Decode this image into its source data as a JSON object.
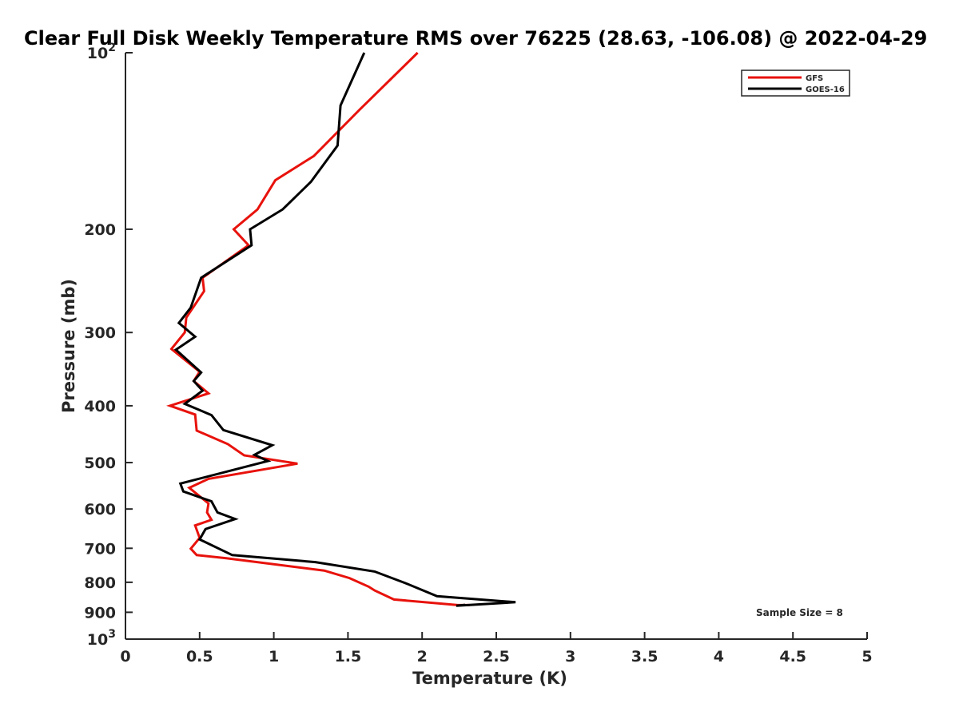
{
  "chart_data": {
    "type": "line",
    "title": "Clear Full Disk Weekly Temperature RMS over 76225 (28.63, -106.08) @ 2022-04-29",
    "xlabel": "Temperature (K)",
    "ylabel": "Pressure (mb)",
    "xlim": [
      0,
      5
    ],
    "ylim": [
      100,
      1000
    ],
    "y_scale": "log",
    "y_reversed": true,
    "grid": false,
    "legend_position": "top-right",
    "x_ticks": [
      0,
      0.5,
      1,
      1.5,
      2,
      2.5,
      3,
      3.5,
      4,
      4.5,
      5
    ],
    "x_tick_labels": [
      "0",
      "0.5",
      "1",
      "1.5",
      "2",
      "2.5",
      "3",
      "3.5",
      "4",
      "4.5",
      "5"
    ],
    "y_ticks": [
      100,
      200,
      300,
      400,
      500,
      600,
      700,
      800,
      900,
      1000
    ],
    "y_tick_labels": [
      {
        "base": "10",
        "exp": "2"
      },
      {
        "base": "200",
        "exp": ""
      },
      {
        "base": "300",
        "exp": ""
      },
      {
        "base": "400",
        "exp": ""
      },
      {
        "base": "500",
        "exp": ""
      },
      {
        "base": "600",
        "exp": ""
      },
      {
        "base": "700",
        "exp": ""
      },
      {
        "base": "800",
        "exp": ""
      },
      {
        "base": "900",
        "exp": ""
      },
      {
        "base": "10",
        "exp": "3"
      }
    ],
    "series": [
      {
        "name": "GFS",
        "color": "#e8120c",
        "x": [
          1.97,
          1.58,
          1.27,
          1.01,
          0.89,
          0.73,
          0.83,
          0.52,
          0.53,
          0.41,
          0.4,
          0.31,
          0.5,
          0.46,
          0.56,
          0.3,
          0.47,
          0.48,
          0.69,
          0.8,
          1.16,
          0.56,
          0.43,
          0.56,
          0.55,
          0.58,
          0.47,
          0.5,
          0.44,
          0.48,
          0.68,
          1.34,
          1.51,
          1.64,
          1.68,
          1.81,
          2.24,
          2.32
        ],
        "y": [
          100,
          125,
          150,
          165,
          185,
          200,
          213,
          242,
          255,
          283,
          300,
          320,
          350,
          363,
          381,
          400,
          414,
          441,
          465,
          486,
          502,
          533,
          552,
          587,
          608,
          626,
          640,
          672,
          701,
          719,
          728,
          764,
          787,
          814,
          826,
          856,
          875,
          875
        ]
      },
      {
        "name": "GOES-16",
        "color": "#000000",
        "x": [
          1.61,
          1.45,
          1.43,
          1.25,
          1.06,
          0.84,
          0.85,
          0.51,
          0.44,
          0.36,
          0.47,
          0.34,
          0.51,
          0.46,
          0.52,
          0.4,
          0.58,
          0.66,
          0.99,
          0.87,
          0.96,
          0.37,
          0.39,
          0.58,
          0.62,
          0.74,
          0.54,
          0.5,
          0.72,
          1.28,
          1.68,
          1.89,
          2.1,
          2.63,
          2.23,
          2.29
        ],
        "y": [
          100,
          123,
          144,
          166,
          185,
          200,
          213,
          242,
          272,
          289,
          305,
          321,
          351,
          363,
          377,
          397,
          415,
          440,
          467,
          485,
          497,
          543,
          560,
          582,
          608,
          624,
          649,
          676,
          719,
          739,
          767,
          803,
          845,
          865,
          877,
          874
        ]
      }
    ],
    "annotations": [
      {
        "text": "Sample Size = 8"
      }
    ]
  }
}
